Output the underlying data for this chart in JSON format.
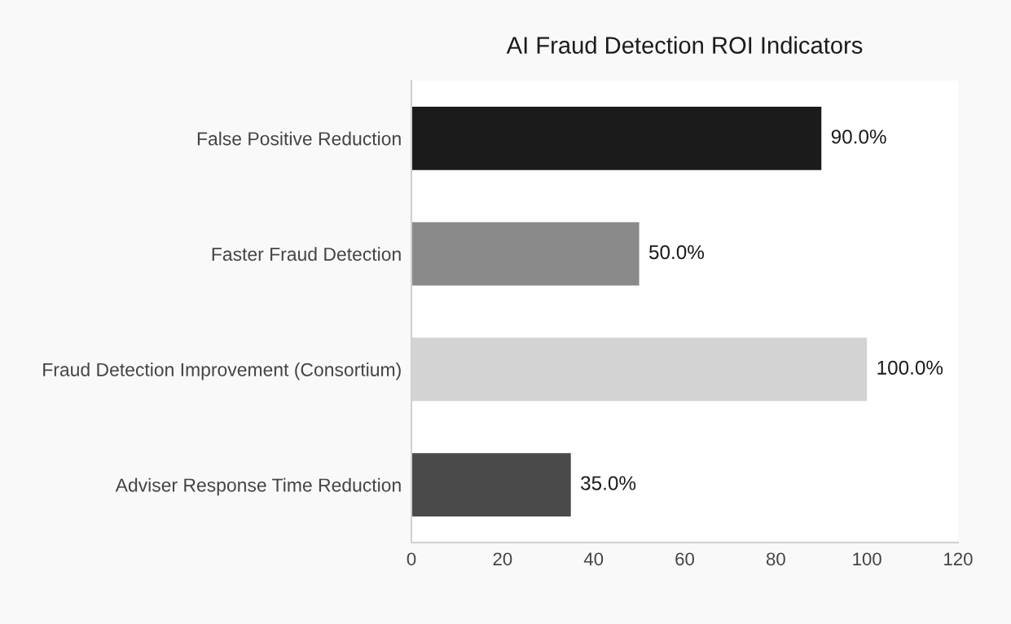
{
  "chart_data": {
    "type": "bar",
    "orientation": "horizontal",
    "title": "AI Fraud Detection ROI Indicators",
    "categories": [
      "False Positive Reduction",
      "Faster Fraud Detection",
      "Fraud Detection Improvement (Consortium)",
      "Adviser Response Time Reduction"
    ],
    "values": [
      90,
      50,
      100,
      35
    ],
    "colors": [
      "#1b1b1b",
      "#8a8a8a",
      "#d3d3d3",
      "#4a4a4a"
    ],
    "value_labels": [
      "90.0%",
      "50.0%",
      "100.0%",
      "35.0%"
    ],
    "xlim": [
      0,
      120
    ],
    "xticks": [
      0,
      20,
      40,
      60,
      80,
      100,
      120
    ],
    "grid": false,
    "legend": false
  }
}
